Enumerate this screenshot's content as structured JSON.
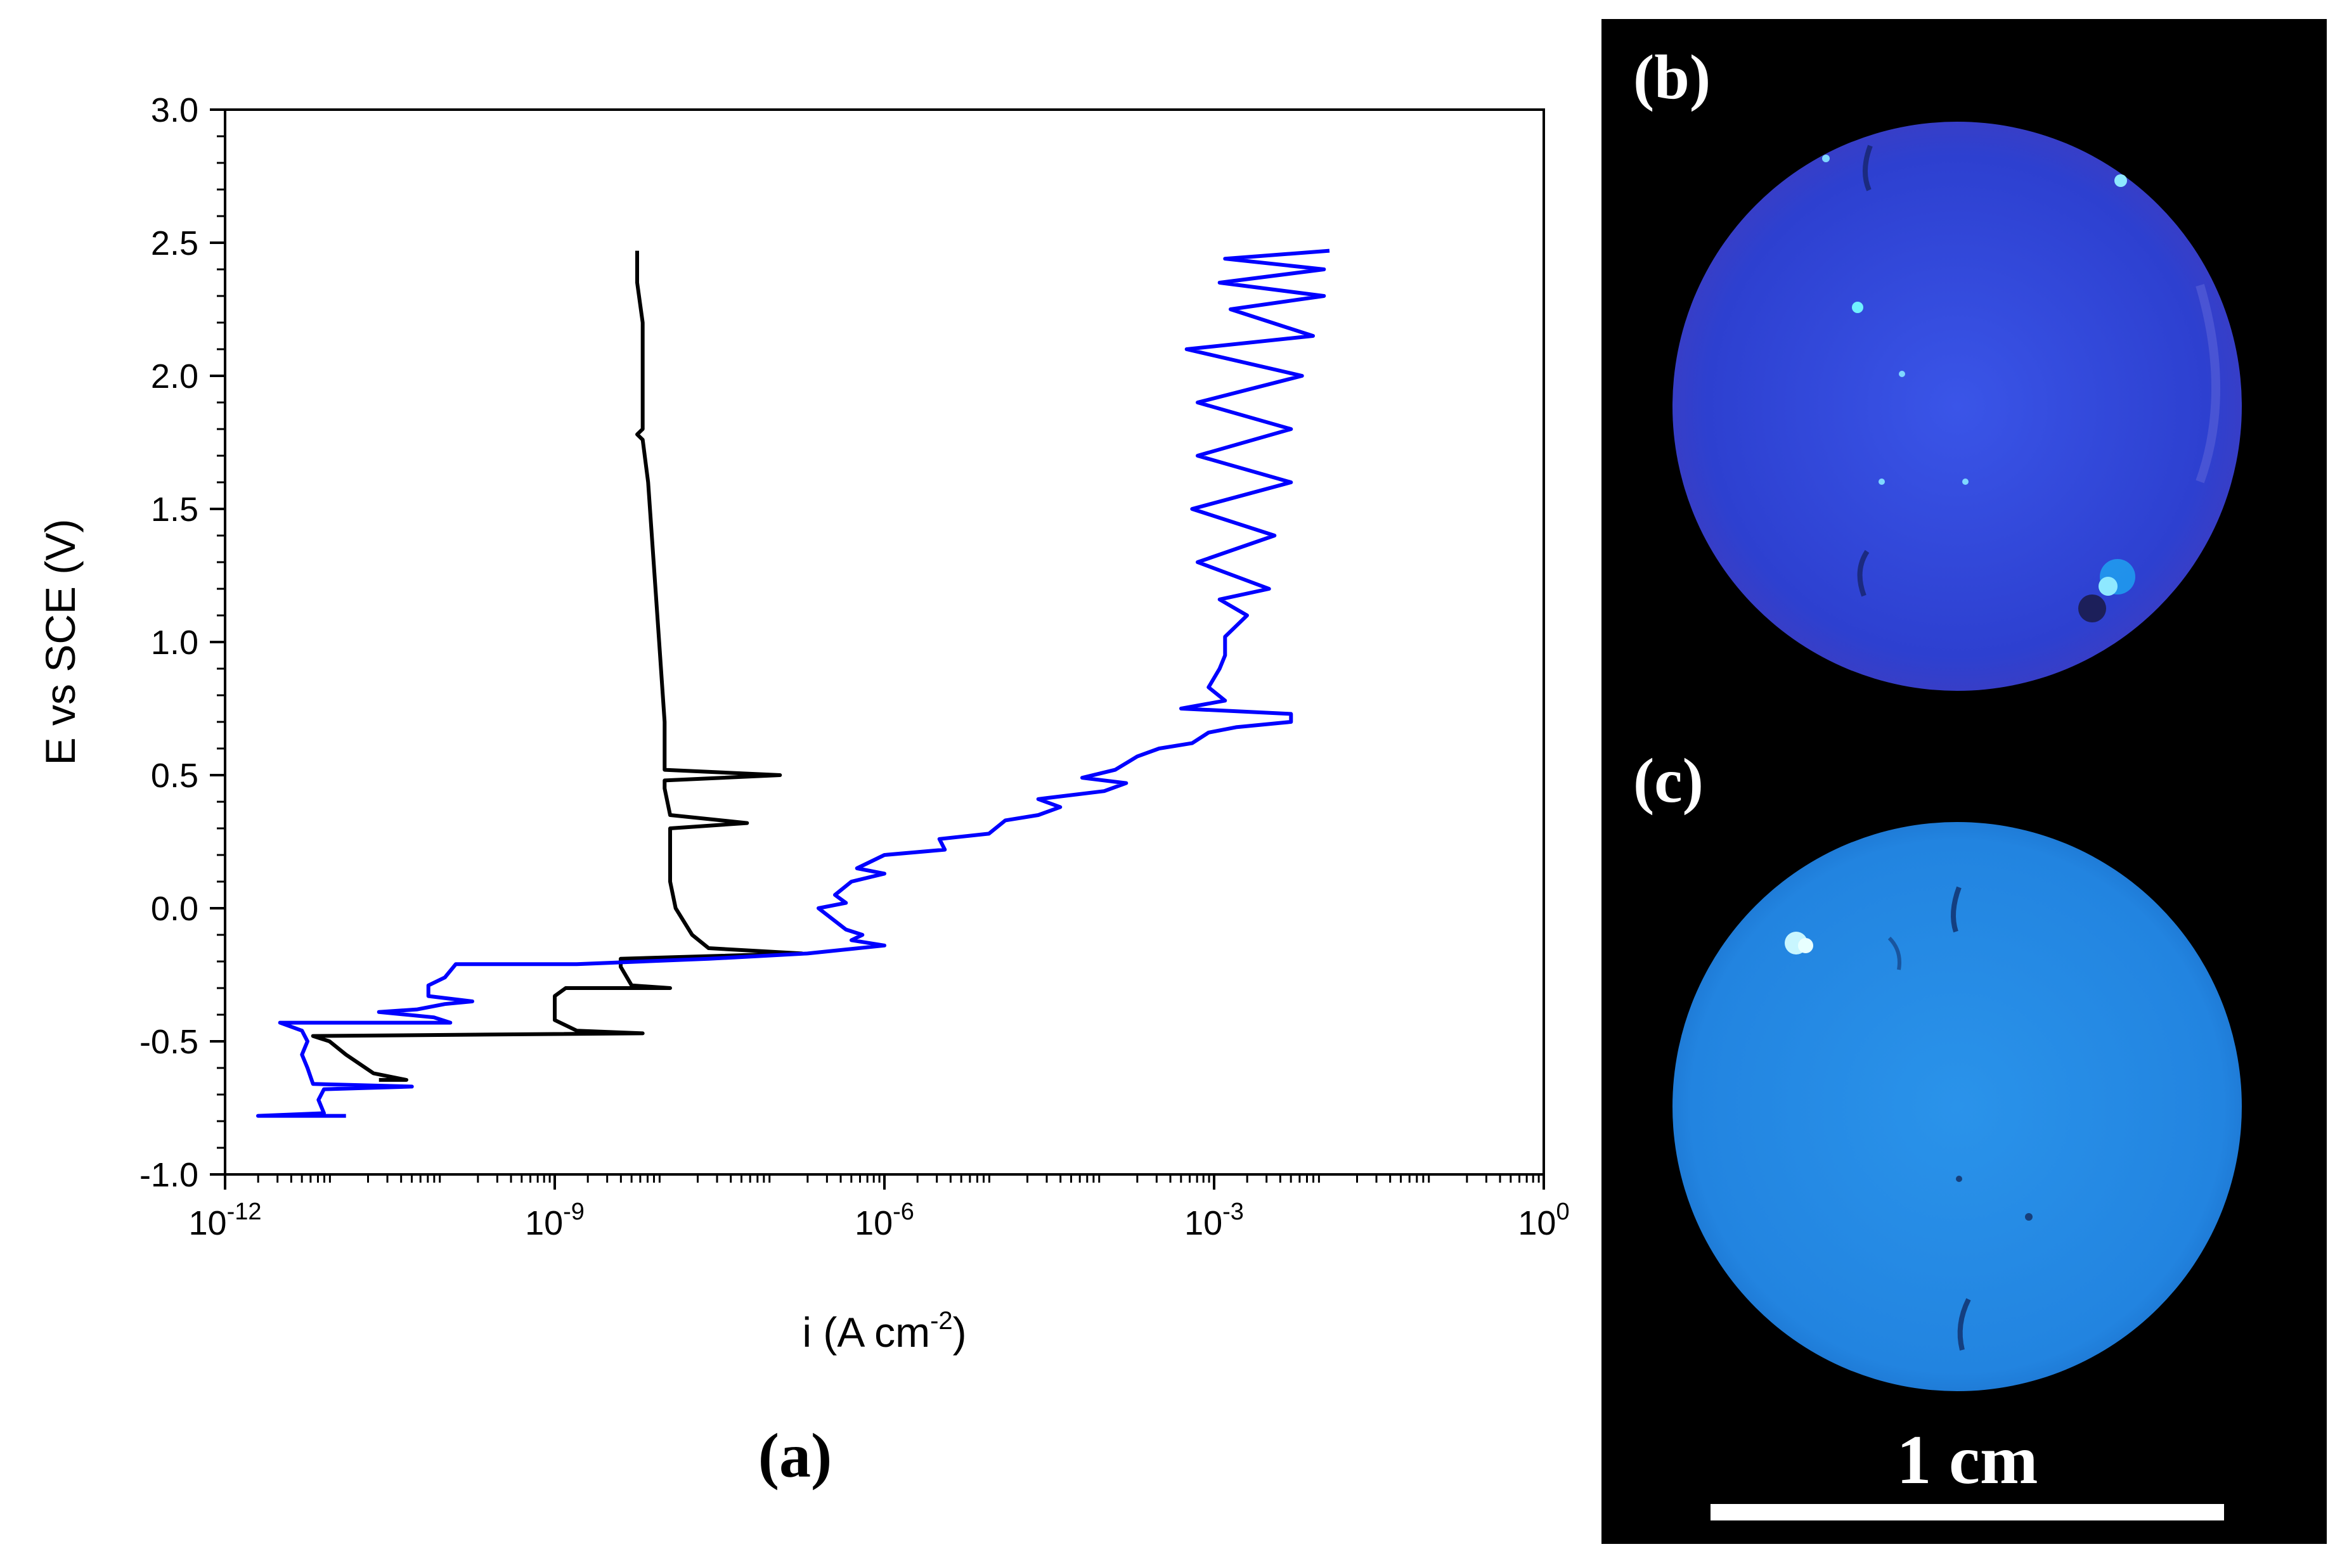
{
  "panel_labels": {
    "a": "(a)",
    "b": "(b)",
    "c": "(c)"
  },
  "scale_bar": {
    "label": "1 cm"
  },
  "colors": {
    "axis": "#000000",
    "series_black": "#000000",
    "series_blue": "#0000ff",
    "photo_background": "#000000",
    "sample_b": "#2c3fd4",
    "sample_c": "#1f86e3",
    "scale_bar": "#ffffff"
  },
  "chart_data": {
    "type": "line",
    "title": "",
    "xlabel": "i (A cm",
    "xlabel_sup": "-2",
    "xlabel_close": ")",
    "ylabel": "E vs SCE (V)",
    "xscale": "log",
    "xlim": [
      1e-12,
      1
    ],
    "ylim": [
      -1.0,
      3.0
    ],
    "x_ticks": [
      {
        "base": "10",
        "exp": "-12",
        "value": 1e-12
      },
      {
        "base": "10",
        "exp": "-9",
        "value": 1e-09
      },
      {
        "base": "10",
        "exp": "-6",
        "value": 1e-06
      },
      {
        "base": "10",
        "exp": "-3",
        "value": 0.001
      },
      {
        "base": "10",
        "exp": "0",
        "value": 1
      }
    ],
    "y_ticks": [
      "3.0",
      "2.5",
      "2.0",
      "1.5",
      "1.0",
      "0.5",
      "0.0",
      "-0.5",
      "-1.0"
    ],
    "series": [
      {
        "name": "black",
        "color": "#000000",
        "points": [
          [
            -10.6,
            -0.645
          ],
          [
            -10.35,
            -0.645
          ],
          [
            -10.65,
            -0.62
          ],
          [
            -10.9,
            -0.55
          ],
          [
            -11.05,
            -0.5
          ],
          [
            -11.2,
            -0.48
          ],
          [
            -8.2,
            -0.47
          ],
          [
            -8.8,
            -0.46
          ],
          [
            -9.0,
            -0.42
          ],
          [
            -9.0,
            -0.33
          ],
          [
            -8.9,
            -0.3
          ],
          [
            -7.95,
            -0.3
          ],
          [
            -8.3,
            -0.29
          ],
          [
            -8.4,
            -0.22
          ],
          [
            -8.4,
            -0.19
          ],
          [
            -7.6,
            -0.18
          ],
          [
            -6.75,
            -0.17
          ],
          [
            -7.6,
            -0.15
          ],
          [
            -7.75,
            -0.1
          ],
          [
            -7.9,
            0.0
          ],
          [
            -7.95,
            0.1
          ],
          [
            -7.95,
            0.2
          ],
          [
            -7.95,
            0.3
          ],
          [
            -7.25,
            0.32
          ],
          [
            -7.95,
            0.35
          ],
          [
            -8.0,
            0.45
          ],
          [
            -8.0,
            0.48
          ],
          [
            -6.95,
            0.5
          ],
          [
            -8.0,
            0.52
          ],
          [
            -8.0,
            0.7
          ],
          [
            -8.05,
            1.0
          ],
          [
            -8.1,
            1.3
          ],
          [
            -8.15,
            1.6
          ],
          [
            -8.2,
            1.76
          ],
          [
            -8.25,
            1.78
          ],
          [
            -8.2,
            1.8
          ],
          [
            -8.2,
            2.0
          ],
          [
            -8.2,
            2.2
          ],
          [
            -8.25,
            2.35
          ],
          [
            -8.25,
            2.47
          ]
        ]
      },
      {
        "name": "blue",
        "color": "#0000ff",
        "points": [
          [
            -10.9,
            -0.78
          ],
          [
            -11.7,
            -0.78
          ],
          [
            -11.1,
            -0.77
          ],
          [
            -11.15,
            -0.72
          ],
          [
            -11.1,
            -0.68
          ],
          [
            -10.3,
            -0.67
          ],
          [
            -11.2,
            -0.66
          ],
          [
            -11.25,
            -0.6
          ],
          [
            -11.3,
            -0.55
          ],
          [
            -11.25,
            -0.5
          ],
          [
            -11.3,
            -0.46
          ],
          [
            -11.5,
            -0.43
          ],
          [
            -9.95,
            -0.43
          ],
          [
            -10.1,
            -0.41
          ],
          [
            -10.6,
            -0.39
          ],
          [
            -10.25,
            -0.38
          ],
          [
            -10.0,
            -0.36
          ],
          [
            -9.75,
            -0.35
          ],
          [
            -10.15,
            -0.33
          ],
          [
            -10.15,
            -0.29
          ],
          [
            -10.0,
            -0.26
          ],
          [
            -9.9,
            -0.21
          ],
          [
            -8.8,
            -0.21
          ],
          [
            -7.6,
            -0.19
          ],
          [
            -6.7,
            -0.17
          ],
          [
            -6.0,
            -0.14
          ],
          [
            -6.3,
            -0.12
          ],
          [
            -6.2,
            -0.1
          ],
          [
            -6.35,
            -0.08
          ],
          [
            -6.6,
            0.0
          ],
          [
            -6.35,
            0.02
          ],
          [
            -6.45,
            0.05
          ],
          [
            -6.3,
            0.1
          ],
          [
            -6.0,
            0.13
          ],
          [
            -6.25,
            0.15
          ],
          [
            -6.0,
            0.2
          ],
          [
            -5.45,
            0.22
          ],
          [
            -5.5,
            0.26
          ],
          [
            -5.05,
            0.28
          ],
          [
            -4.9,
            0.33
          ],
          [
            -4.6,
            0.35
          ],
          [
            -4.4,
            0.38
          ],
          [
            -4.6,
            0.41
          ],
          [
            -4.0,
            0.44
          ],
          [
            -3.8,
            0.47
          ],
          [
            -4.2,
            0.49
          ],
          [
            -3.9,
            0.52
          ],
          [
            -3.7,
            0.57
          ],
          [
            -3.5,
            0.6
          ],
          [
            -3.2,
            0.62
          ],
          [
            -3.05,
            0.66
          ],
          [
            -2.8,
            0.68
          ],
          [
            -2.3,
            0.7
          ],
          [
            -2.3,
            0.73
          ],
          [
            -3.3,
            0.75
          ],
          [
            -2.9,
            0.78
          ],
          [
            -3.05,
            0.83
          ],
          [
            -2.95,
            0.9
          ],
          [
            -2.9,
            0.95
          ],
          [
            -2.9,
            1.02
          ],
          [
            -2.7,
            1.1
          ],
          [
            -2.95,
            1.16
          ],
          [
            -2.5,
            1.2
          ],
          [
            -3.15,
            1.3
          ],
          [
            -2.45,
            1.4
          ],
          [
            -3.2,
            1.5
          ],
          [
            -2.3,
            1.6
          ],
          [
            -3.15,
            1.7
          ],
          [
            -2.3,
            1.8
          ],
          [
            -3.15,
            1.9
          ],
          [
            -2.2,
            2.0
          ],
          [
            -3.25,
            2.1
          ],
          [
            -2.1,
            2.15
          ],
          [
            -2.85,
            2.25
          ],
          [
            -2.0,
            2.3
          ],
          [
            -2.95,
            2.35
          ],
          [
            -2.0,
            2.4
          ],
          [
            -2.9,
            2.44
          ],
          [
            -1.95,
            2.47
          ]
        ]
      }
    ]
  }
}
